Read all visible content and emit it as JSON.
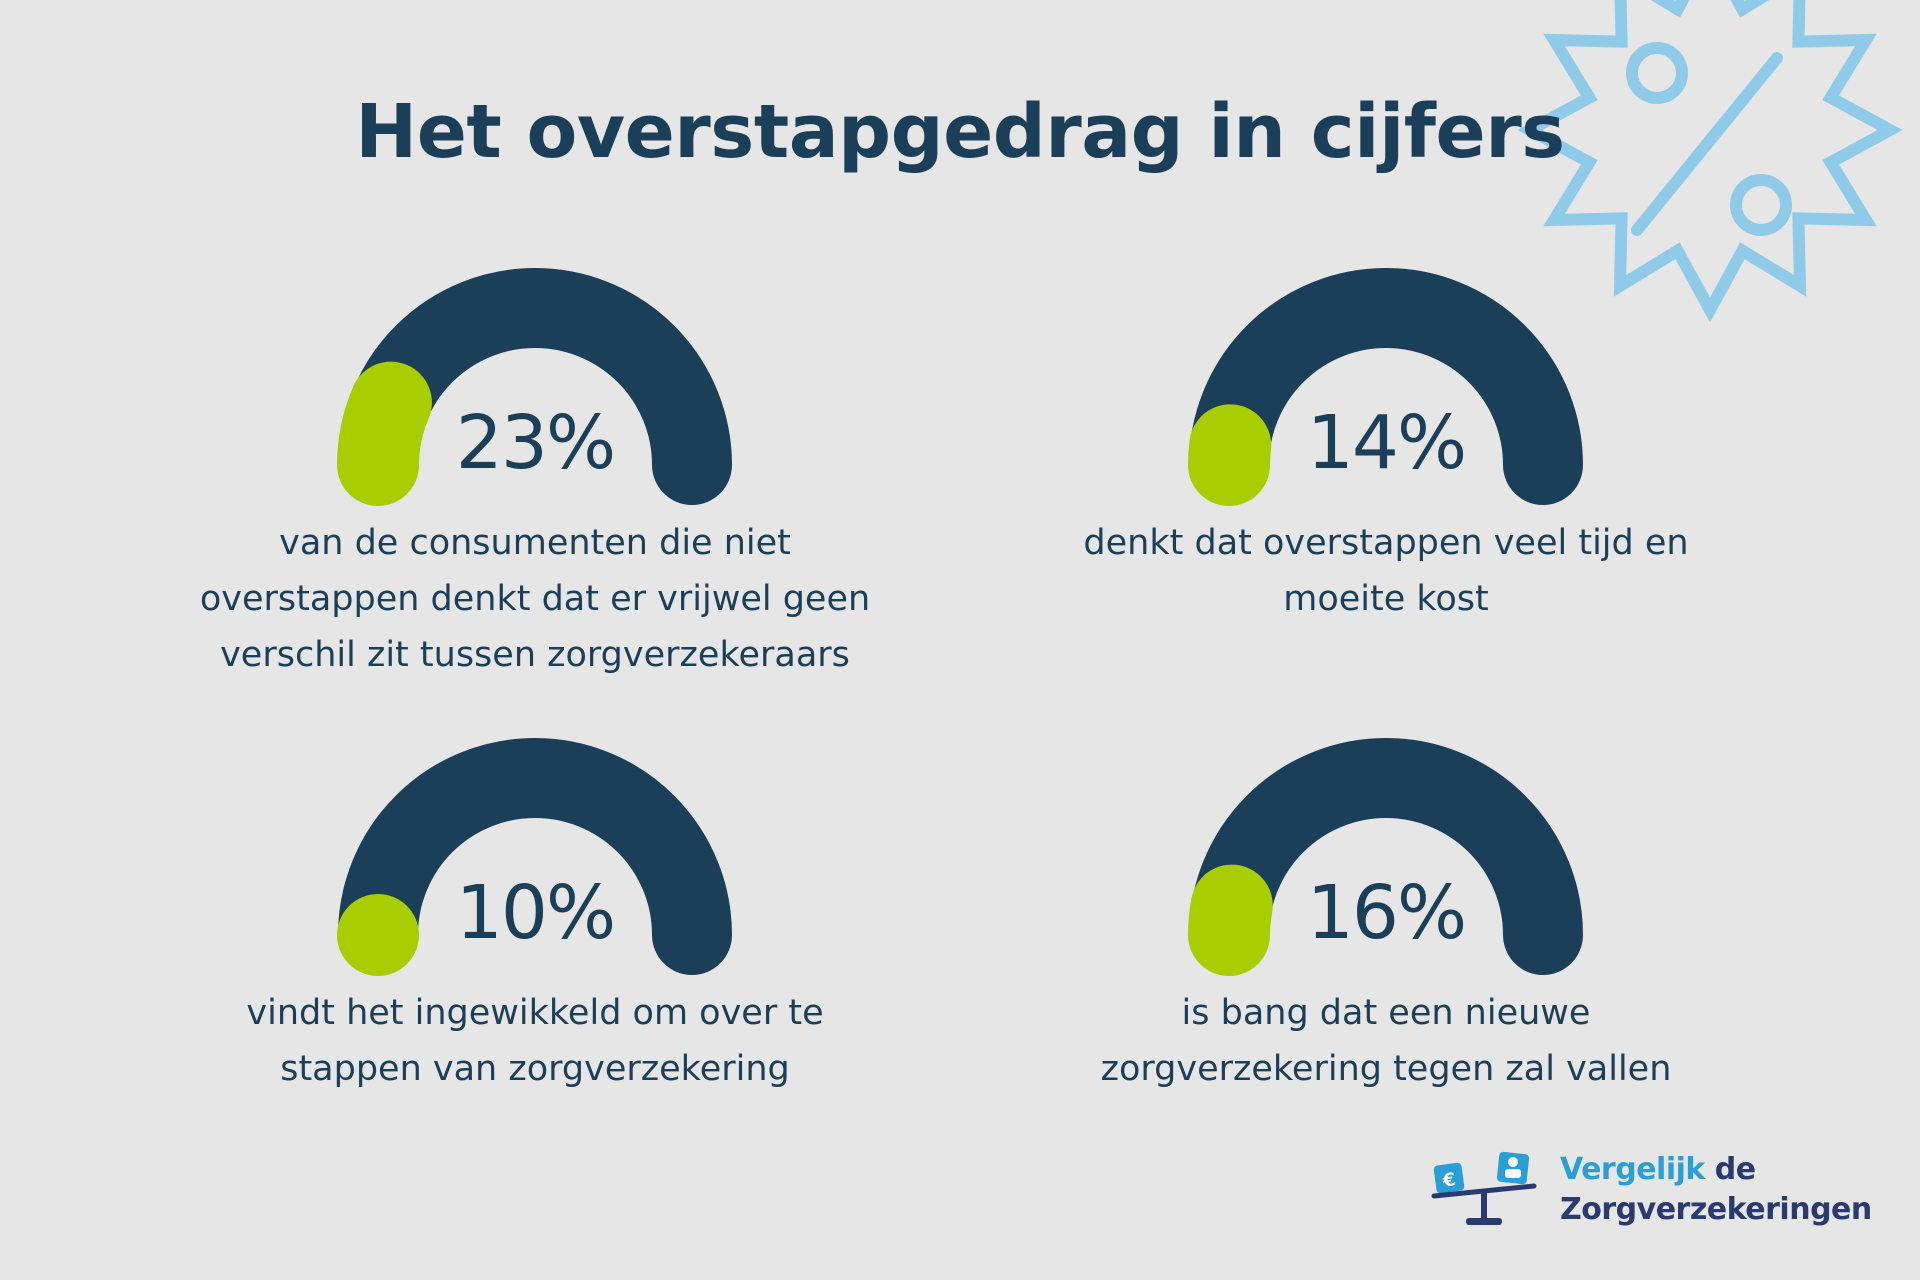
{
  "colors": {
    "background": "#e6e6e6",
    "dark_navy": "#1b3f59",
    "lime_green": "#a8cd00",
    "light_blue": "#8fcbe9",
    "brand_blue": "#2a9fd6"
  },
  "decoration": {
    "badge_icon": "percent-badge-icon"
  },
  "title": "Het overstapgedrag in cijfers",
  "chart_data": {
    "type": "gauge",
    "title": "Het overstapgedrag in cijfers",
    "unit": "%",
    "ylim": [
      0,
      100
    ],
    "categories": [
      "van de consumenten die niet overstappen denkt dat er vrijwel geen verschil zit tussen zorgverzekeraars",
      "denkt dat overstappen veel tijd en moeite kost",
      "vindt het ingewikkeld om over te stappen van zorgverzekering",
      "is bang dat een nieuwe zorgverzekering tegen zal vallen"
    ],
    "values": [
      23,
      14,
      10,
      16
    ],
    "series": [
      {
        "value": 23,
        "label": "23%",
        "lines": [
          "van de consumenten die niet",
          "overstappen denkt dat er vrijwel geen",
          "verschil zit tussen zorgverzekeraars"
        ]
      },
      {
        "value": 14,
        "label": "14%",
        "lines": [
          "denkt dat overstappen veel tijd en",
          "moeite kost"
        ]
      },
      {
        "value": 10,
        "label": "10%",
        "lines": [
          "vindt het ingewikkeld om over te",
          "stappen van zorgverzekering"
        ]
      },
      {
        "value": 16,
        "label": "16%",
        "lines": [
          "is bang dat een nieuwe",
          "zorgverzekering tegen zal vallen"
        ]
      }
    ]
  },
  "logo": {
    "icon": "balance-scale-euro-icon",
    "line1_part1": "Vergelijk",
    "line1_part2": " de",
    "line2": "Zorgverzekeringen"
  }
}
